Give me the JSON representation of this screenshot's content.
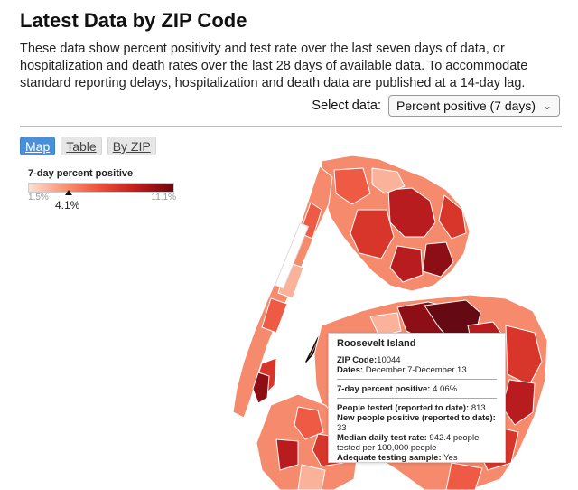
{
  "header": {
    "title": "Latest Data by ZIP Code",
    "description": "These data show percent positivity and test rate over the last seven days of data, or hospitalization and death rates over the last 28 days of available data. To accommodate standard reporting delays, hospitalization and death data are published at a 14-day lag."
  },
  "select": {
    "label": "Select data:",
    "value": "Percent positive (7 days)"
  },
  "tabs": [
    {
      "label": "Map",
      "active": true
    },
    {
      "label": "Table",
      "active": false
    },
    {
      "label": "By ZIP",
      "active": false
    }
  ],
  "legend": {
    "title": "7-day percent positive",
    "min": "1.5%",
    "max": "11.1%",
    "marker_value": "4.1%",
    "marker_fraction": 0.27,
    "colors": [
      "#fde0d2",
      "#fa9272",
      "#ee4c36",
      "#c11a1b",
      "#6e0710"
    ]
  },
  "tooltip": {
    "title": "Roosevelt Island",
    "zip_label": "ZIP Code:",
    "zip_value": "10044",
    "dates_label": "Dates:",
    "dates_value": "December 7-December 13",
    "positive_label": "7-day percent positive:",
    "positive_value": "4.06%",
    "tested_label": "People tested (reported to date):",
    "tested_value": "813",
    "new_positive_label": "New people positive (reported to date):",
    "new_positive_value": "33",
    "test_rate_label": "Median daily test rate:",
    "test_rate_value": "942.4 people tested per 100,000 people",
    "adequate_label": "Adequate testing sample:",
    "adequate_value": "Yes"
  },
  "map": {
    "palette": {
      "very_light": "#fbb29a",
      "light": "#f58a6d",
      "mid": "#ee5a43",
      "mid_dark": "#d9362b",
      "dark": "#b81c1f",
      "very_dark": "#8d0f15",
      "darkest": "#650a12"
    }
  }
}
